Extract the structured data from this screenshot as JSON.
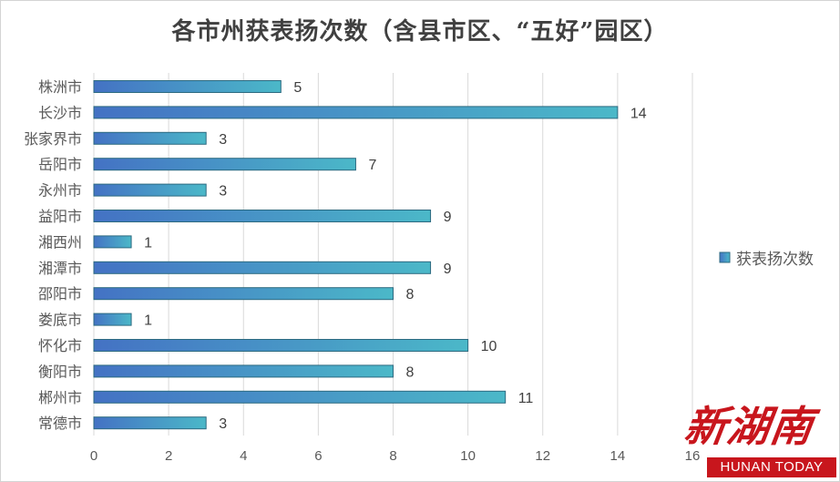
{
  "chart_data": {
    "type": "bar",
    "orientation": "horizontal",
    "title": "各市州获表扬次数（含县市区、“五好”园区）",
    "categories": [
      "株洲市",
      "长沙市",
      "张家界市",
      "岳阳市",
      "永州市",
      "益阳市",
      "湘西州",
      "湘潭市",
      "邵阳市",
      "娄底市",
      "怀化市",
      "衡阳市",
      "郴州市",
      "常德市"
    ],
    "series": [
      {
        "name": "获表扬次数",
        "values": [
          5,
          14,
          3,
          7,
          3,
          9,
          1,
          9,
          8,
          1,
          10,
          8,
          11,
          3
        ]
      }
    ],
    "xlim": [
      0,
      16
    ],
    "xticks": [
      "0",
      "2",
      "4",
      "6",
      "8",
      "10",
      "12",
      "14",
      "16"
    ],
    "grid": true,
    "legend": "right",
    "colors": {
      "bar_start": "#4472c4",
      "bar_end": "#4bb8c8",
      "bar_edge": "#2c6a80"
    }
  },
  "logo": {
    "cn": "新湖南",
    "en": "HUNAN TODAY"
  }
}
